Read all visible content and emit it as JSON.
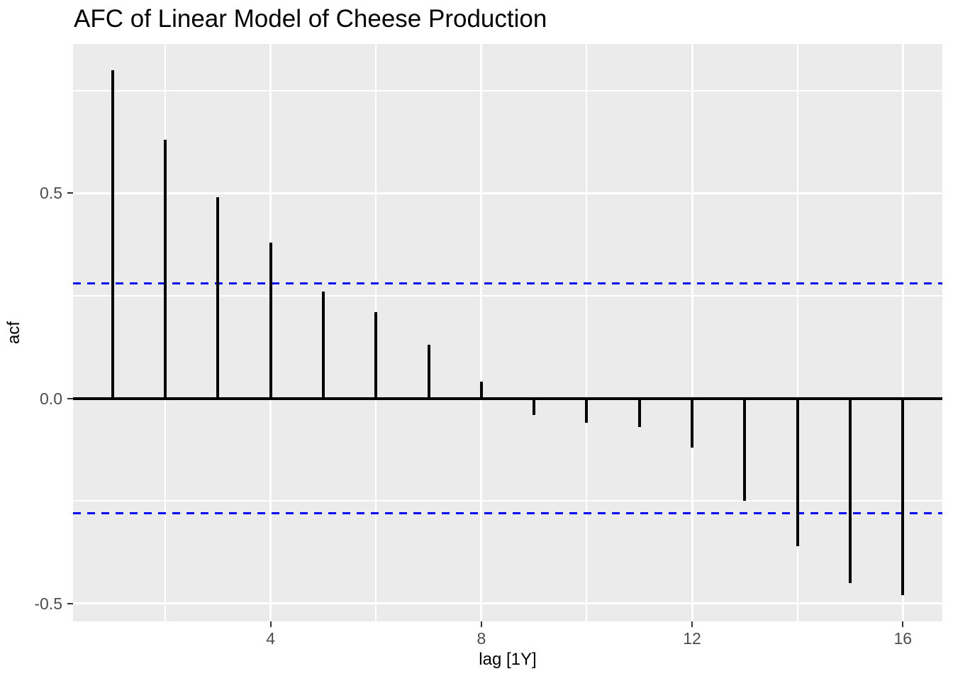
{
  "chart_data": {
    "type": "bar",
    "subtype": "acf-lollipop",
    "title": "AFC of Linear Model of Cheese Production",
    "xlabel": "lag [1Y]",
    "ylabel": "acf",
    "x": [
      1,
      2,
      3,
      4,
      5,
      6,
      7,
      8,
      9,
      10,
      11,
      12,
      13,
      14,
      15,
      16
    ],
    "values": [
      0.8,
      0.63,
      0.49,
      0.38,
      0.26,
      0.21,
      0.13,
      0.04,
      -0.04,
      -0.06,
      -0.07,
      -0.12,
      -0.25,
      -0.36,
      -0.45,
      -0.48
    ],
    "confidence_bounds": {
      "upper": 0.28,
      "lower": -0.28,
      "line_style": "dashed"
    },
    "xlim": [
      0.25,
      16.75
    ],
    "ylim": [
      -0.544,
      0.864
    ],
    "x_ticks": [
      {
        "value": 4,
        "label": "4"
      },
      {
        "value": 8,
        "label": "8"
      },
      {
        "value": 12,
        "label": "12"
      },
      {
        "value": 16,
        "label": "16"
      }
    ],
    "y_ticks": [
      {
        "value": 0.5,
        "label": "0.5"
      },
      {
        "value": 0.0,
        "label": "0.0"
      },
      {
        "value": -0.5,
        "label": "-0.5"
      }
    ],
    "x_minor_gridlines": [
      2,
      6,
      10,
      14
    ],
    "y_minor_gridlines": [
      0.75,
      0.25,
      -0.25
    ],
    "grid": true,
    "legend": "none",
    "colors": {
      "page_background": "#FFFFFF",
      "panel_background": "#EBEBEB",
      "gridline": "#FFFFFF",
      "spike": "#000000",
      "zero_line": "#000000",
      "ci_line": "#0808EE",
      "tick_mark": "#333333",
      "tick_label": "#4D4D4D",
      "axis_title": "#000000",
      "title": "#000000"
    }
  }
}
